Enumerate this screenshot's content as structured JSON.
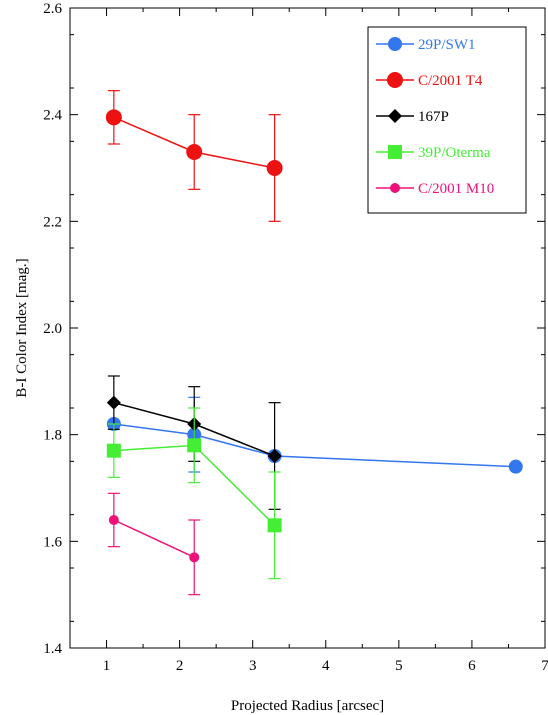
{
  "chart_data": {
    "type": "scatter",
    "xlabel": "Projected Radius [arcsec]",
    "ylabel": "B-I Color Index [mag.]",
    "xlim": [
      0.5,
      7
    ],
    "ylim": [
      1.4,
      2.6
    ],
    "xticks": [
      1,
      2,
      3,
      4,
      5,
      6,
      7
    ],
    "yticks": [
      1.4,
      1.6,
      1.8,
      2.0,
      2.2,
      2.4,
      2.6
    ],
    "ytick_labels": [
      "1.4",
      "1.6",
      "1.8",
      "2.0",
      "2.2",
      "2.4",
      "2.6"
    ],
    "grid": false,
    "legend_position": "top-right",
    "series": [
      {
        "name": "29P/SW1",
        "color": "#3377ee",
        "marker": "circle",
        "points": [
          {
            "x": 1.1,
            "y": 1.82,
            "err": 0.0
          },
          {
            "x": 2.2,
            "y": 1.8,
            "err": 0.07
          },
          {
            "x": 3.3,
            "y": 1.76,
            "err": 0.0
          },
          {
            "x": 6.6,
            "y": 1.74,
            "err": 0.0
          }
        ]
      },
      {
        "name": "C/2001 T4",
        "color": "#ee1111",
        "marker": "circle-large",
        "points": [
          {
            "x": 1.1,
            "y": 2.395,
            "err": 0.05
          },
          {
            "x": 2.2,
            "y": 2.33,
            "err": 0.07
          },
          {
            "x": 3.3,
            "y": 2.3,
            "err": 0.1
          }
        ]
      },
      {
        "name": "167P",
        "color": "#000000",
        "marker": "diamond",
        "points": [
          {
            "x": 1.1,
            "y": 1.86,
            "err": 0.05
          },
          {
            "x": 2.2,
            "y": 1.82,
            "err": 0.07
          },
          {
            "x": 3.3,
            "y": 1.76,
            "err": 0.1
          }
        ]
      },
      {
        "name": "39P/Oterma",
        "color": "#44ee33",
        "marker": "square",
        "points": [
          {
            "x": 1.1,
            "y": 1.77,
            "err": 0.05
          },
          {
            "x": 2.2,
            "y": 1.78,
            "err": 0.07
          },
          {
            "x": 3.3,
            "y": 1.63,
            "err": 0.1
          }
        ]
      },
      {
        "name": "C/2001 M10",
        "color": "#ee1177",
        "marker": "circle-small",
        "points": [
          {
            "x": 1.1,
            "y": 1.64,
            "err": 0.05
          },
          {
            "x": 2.2,
            "y": 1.57,
            "err": 0.07
          }
        ]
      }
    ]
  }
}
